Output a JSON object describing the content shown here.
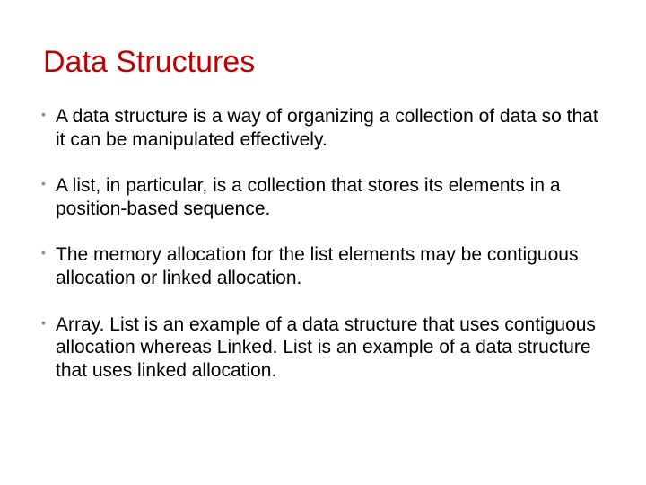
{
  "slide": {
    "title": "Data Structures",
    "title_color": "#c00000",
    "title_fontsize": 34,
    "body_fontsize": 21,
    "body_color": "#000000",
    "bullet_marker_color": "#8a8a8a",
    "background_color": "#ffffff",
    "bullets": [
      "A data structure is a way of organizing a collection of data so that it can be manipulated effectively.",
      "A list, in particular, is a collection that stores its elements in a position-based sequence.",
      "The memory allocation for the list elements may be contiguous allocation or linked allocation.",
      "Array. List is an example of a data structure that uses contiguous allocation whereas Linked. List is an example of a data structure that uses linked allocation."
    ]
  }
}
